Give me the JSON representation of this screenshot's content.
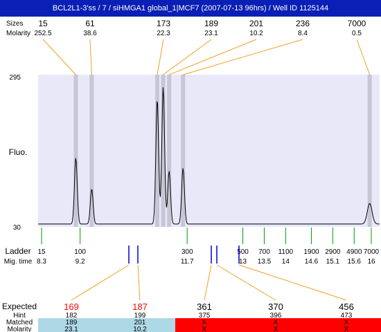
{
  "title": "BCL2L1-3'ss / 7 / siHMGA1 global_1|MCF7 (2007-07-13 96hrs) / Well ID 1125144",
  "labels": {
    "sizes": "Sizes",
    "molarity": "Molarity",
    "fluo": "Fluo.",
    "ladder": "Ladder",
    "mig_time": "Mig. time",
    "expected": "Expected",
    "hint": "Hint",
    "matched": "Matched",
    "molarity_bottom": "Molarity"
  },
  "colors": {
    "title_bg": "#0a1fb5",
    "plot_bg": "#e8e8f8",
    "peak_band": "#c6c6d6",
    "connector": "#f0a020",
    "ladder_tick": "#009900",
    "blue_tick": "#0000cc",
    "expected_red": "#ff0000",
    "matched_ok": "#add8e6",
    "matched_fail": "#ff0000"
  },
  "chart_data": {
    "type": "line",
    "ylabel": "Fluo.",
    "ylim": [
      30,
      295
    ],
    "y_ticks": [
      "295",
      "30"
    ],
    "peaks": [
      {
        "size": "15",
        "molarity": "252.5",
        "mig_time": 8.55,
        "height": 0.45
      },
      {
        "size": "61",
        "molarity": "38.6",
        "mig_time": 8.95,
        "height": 0.24
      },
      {
        "size": "173",
        "molarity": "22.3",
        "mig_time": 10.6,
        "height": 0.85
      },
      {
        "size": "189",
        "molarity": "23.1",
        "mig_time": 10.75,
        "height": 0.93
      },
      {
        "size": "201",
        "molarity": "10.2",
        "mig_time": 10.9,
        "height": 0.36
      },
      {
        "size": "236",
        "molarity": "8.4",
        "mig_time": 11.25,
        "height": 0.38
      },
      {
        "size": "7000",
        "molarity": "0.5",
        "mig_time": 15.95,
        "height": 0.14
      }
    ],
    "ladder": [
      {
        "size": "15",
        "time": "8.3"
      },
      {
        "size": "100",
        "time": "9.2"
      },
      {
        "size": "300",
        "time": "11.7"
      },
      {
        "size": "500",
        "time": "13"
      },
      {
        "size": "700",
        "time": "13.5"
      },
      {
        "size": "1100",
        "time": "14"
      },
      {
        "size": "1900",
        "time": "14.6"
      },
      {
        "size": "2900",
        "time": "15.1"
      },
      {
        "size": "4900",
        "time": "15.6"
      },
      {
        "size": "7000",
        "time": "16"
      }
    ],
    "expected": [
      {
        "value": "169",
        "hint": "182",
        "matched": "189",
        "molarity": "23.1",
        "found": true
      },
      {
        "value": "187",
        "hint": "199",
        "matched": "201",
        "molarity": "10.2",
        "found": true
      },
      {
        "value": "361",
        "hint": "375",
        "matched": "X",
        "molarity": "X",
        "found": false
      },
      {
        "value": "370",
        "hint": "396",
        "matched": "X",
        "molarity": "X",
        "found": false
      },
      {
        "value": "456",
        "hint": "473",
        "matched": "X",
        "molarity": "X",
        "found": false
      }
    ]
  }
}
